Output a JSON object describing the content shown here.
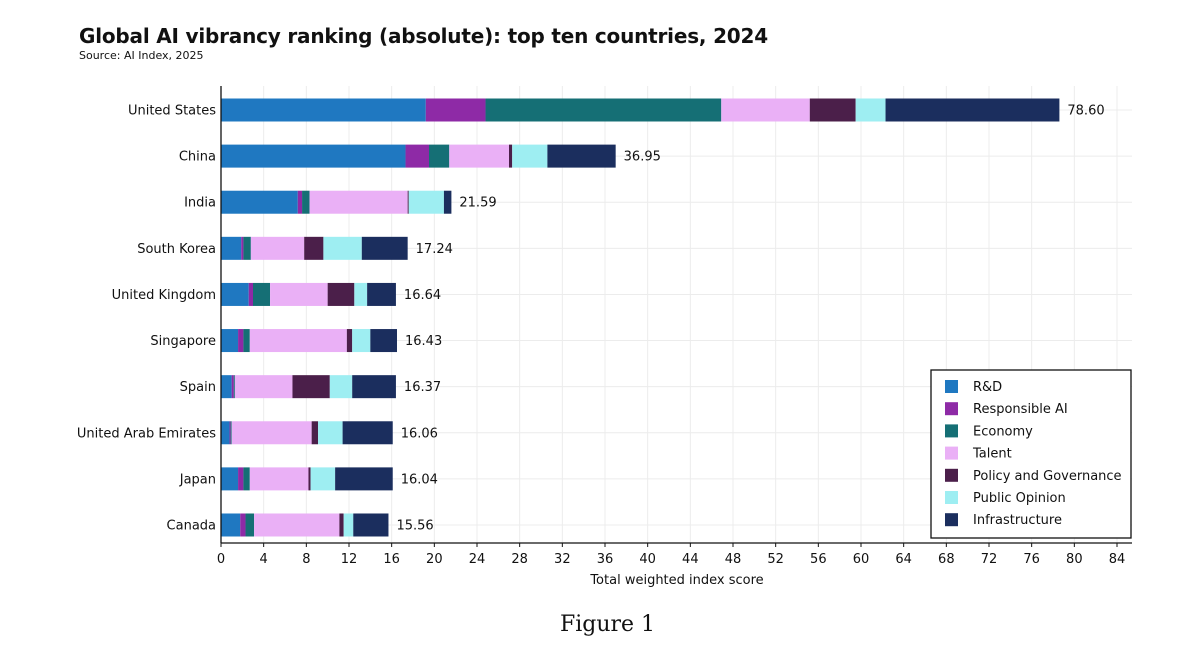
{
  "header": {
    "title": "Global AI vibrancy ranking (absolute): top ten countries, 2024",
    "subtitle": "Source: AI Index, 2025"
  },
  "caption": "Figure 1",
  "chart_data": {
    "type": "bar",
    "orientation": "horizontal",
    "stacked": true,
    "title": "Global AI vibrancy ranking (absolute): top ten countries, 2024",
    "subtitle": "Source: AI Index, 2025",
    "xlabel": "Total weighted index score",
    "ylabel": "",
    "xlim": [
      0,
      84
    ],
    "xticks": [
      0,
      4,
      8,
      12,
      16,
      20,
      24,
      28,
      32,
      36,
      40,
      44,
      48,
      52,
      56,
      60,
      64,
      68,
      72,
      76,
      80,
      84
    ],
    "grid": true,
    "legend_position": "bottom-right",
    "categories": [
      "United States",
      "China",
      "India",
      "South Korea",
      "United Kingdom",
      "Singapore",
      "Spain",
      "United Arab Emirates",
      "Japan",
      "Canada"
    ],
    "totals": [
      "78.60",
      "36.95",
      "21.59",
      "17.24",
      "16.64",
      "16.43",
      "16.37",
      "16.06",
      "16.04",
      "15.56"
    ],
    "series": [
      {
        "name": "R&D",
        "color": "#1f78c1",
        "values": [
          19.2,
          17.3,
          7.2,
          1.9,
          2.6,
          1.6,
          1.0,
          0.8,
          1.6,
          1.8
        ]
      },
      {
        "name": "Responsible AI",
        "color": "#8e2aa6",
        "values": [
          5.6,
          2.2,
          0.4,
          0.2,
          0.4,
          0.5,
          0.2,
          0.1,
          0.5,
          0.5
        ]
      },
      {
        "name": "Economy",
        "color": "#156f75",
        "values": [
          22.1,
          1.9,
          0.7,
          0.7,
          1.6,
          0.6,
          0.1,
          0.1,
          0.6,
          0.8
        ]
      },
      {
        "name": "Talent",
        "color": "#eab0f6",
        "values": [
          8.3,
          5.6,
          9.2,
          5.0,
          5.4,
          9.1,
          5.4,
          7.5,
          5.5,
          8.0
        ]
      },
      {
        "name": "Policy and Governance",
        "color": "#4b1f4a",
        "values": [
          4.3,
          0.3,
          0.1,
          1.8,
          2.5,
          0.5,
          3.5,
          0.6,
          0.2,
          0.4
        ]
      },
      {
        "name": "Public Opinion",
        "color": "#9eeef2",
        "values": [
          2.8,
          3.3,
          3.3,
          3.6,
          1.2,
          1.7,
          2.1,
          2.3,
          2.3,
          0.9
        ]
      },
      {
        "name": "Infrastructure",
        "color": "#1b2e5e",
        "values": [
          16.3,
          6.4,
          0.7,
          4.3,
          2.7,
          2.5,
          4.1,
          4.7,
          5.4,
          3.3
        ]
      }
    ]
  }
}
